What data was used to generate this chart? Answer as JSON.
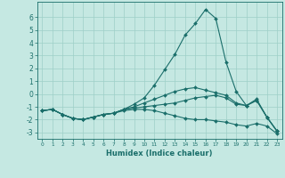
{
  "title": "",
  "xlabel": "Humidex (Indice chaleur)",
  "ylabel": "",
  "xlim": [
    -0.5,
    23.5
  ],
  "ylim": [
    -3.5,
    7.2
  ],
  "yticks": [
    -3,
    -2,
    -1,
    0,
    1,
    2,
    3,
    4,
    5,
    6
  ],
  "xticks": [
    0,
    1,
    2,
    3,
    4,
    5,
    6,
    7,
    8,
    9,
    10,
    11,
    12,
    13,
    14,
    15,
    16,
    17,
    18,
    19,
    20,
    21,
    22,
    23
  ],
  "bg_color": "#c5e8e2",
  "grid_color": "#9ecfc7",
  "line_color": "#1a6e6a",
  "series": [
    {
      "x": [
        0,
        1,
        2,
        3,
        4,
        5,
        6,
        7,
        8,
        9,
        10,
        11,
        12,
        13,
        14,
        15,
        16,
        17,
        18,
        19,
        20,
        21,
        22,
        23
      ],
      "y": [
        -1.3,
        -1.2,
        -1.6,
        -1.9,
        -2.0,
        -1.8,
        -1.6,
        -1.5,
        -1.2,
        -0.8,
        -0.3,
        0.7,
        1.9,
        3.1,
        4.6,
        5.5,
        6.6,
        5.9,
        2.5,
        0.2,
        -0.9,
        -0.4,
        -1.8,
        -2.9
      ]
    },
    {
      "x": [
        0,
        1,
        2,
        3,
        4,
        5,
        6,
        7,
        8,
        9,
        10,
        11,
        12,
        13,
        14,
        15,
        16,
        17,
        18,
        19,
        20,
        21,
        22,
        23
      ],
      "y": [
        -1.3,
        -1.2,
        -1.6,
        -1.9,
        -2.0,
        -1.8,
        -1.6,
        -1.5,
        -1.2,
        -1.0,
        -0.7,
        -0.4,
        -0.1,
        0.2,
        0.4,
        0.5,
        0.3,
        0.1,
        -0.1,
        -0.7,
        -0.9,
        -0.5,
        -1.8,
        -2.9
      ]
    },
    {
      "x": [
        0,
        1,
        2,
        3,
        4,
        5,
        6,
        7,
        8,
        9,
        10,
        11,
        12,
        13,
        14,
        15,
        16,
        17,
        18,
        19,
        20,
        21,
        22,
        23
      ],
      "y": [
        -1.3,
        -1.2,
        -1.6,
        -1.9,
        -2.0,
        -1.8,
        -1.6,
        -1.5,
        -1.2,
        -1.1,
        -1.0,
        -0.9,
        -0.8,
        -0.7,
        -0.5,
        -0.3,
        -0.2,
        -0.1,
        -0.3,
        -0.8,
        -0.9,
        -0.5,
        -1.8,
        -2.9
      ]
    },
    {
      "x": [
        0,
        1,
        2,
        3,
        4,
        5,
        6,
        7,
        8,
        9,
        10,
        11,
        12,
        13,
        14,
        15,
        16,
        17,
        18,
        19,
        20,
        21,
        22,
        23
      ],
      "y": [
        -1.3,
        -1.2,
        -1.6,
        -1.9,
        -2.0,
        -1.8,
        -1.6,
        -1.5,
        -1.3,
        -1.2,
        -1.2,
        -1.3,
        -1.5,
        -1.7,
        -1.9,
        -2.0,
        -2.0,
        -2.1,
        -2.2,
        -2.4,
        -2.5,
        -2.3,
        -2.5,
        -3.1
      ]
    }
  ]
}
